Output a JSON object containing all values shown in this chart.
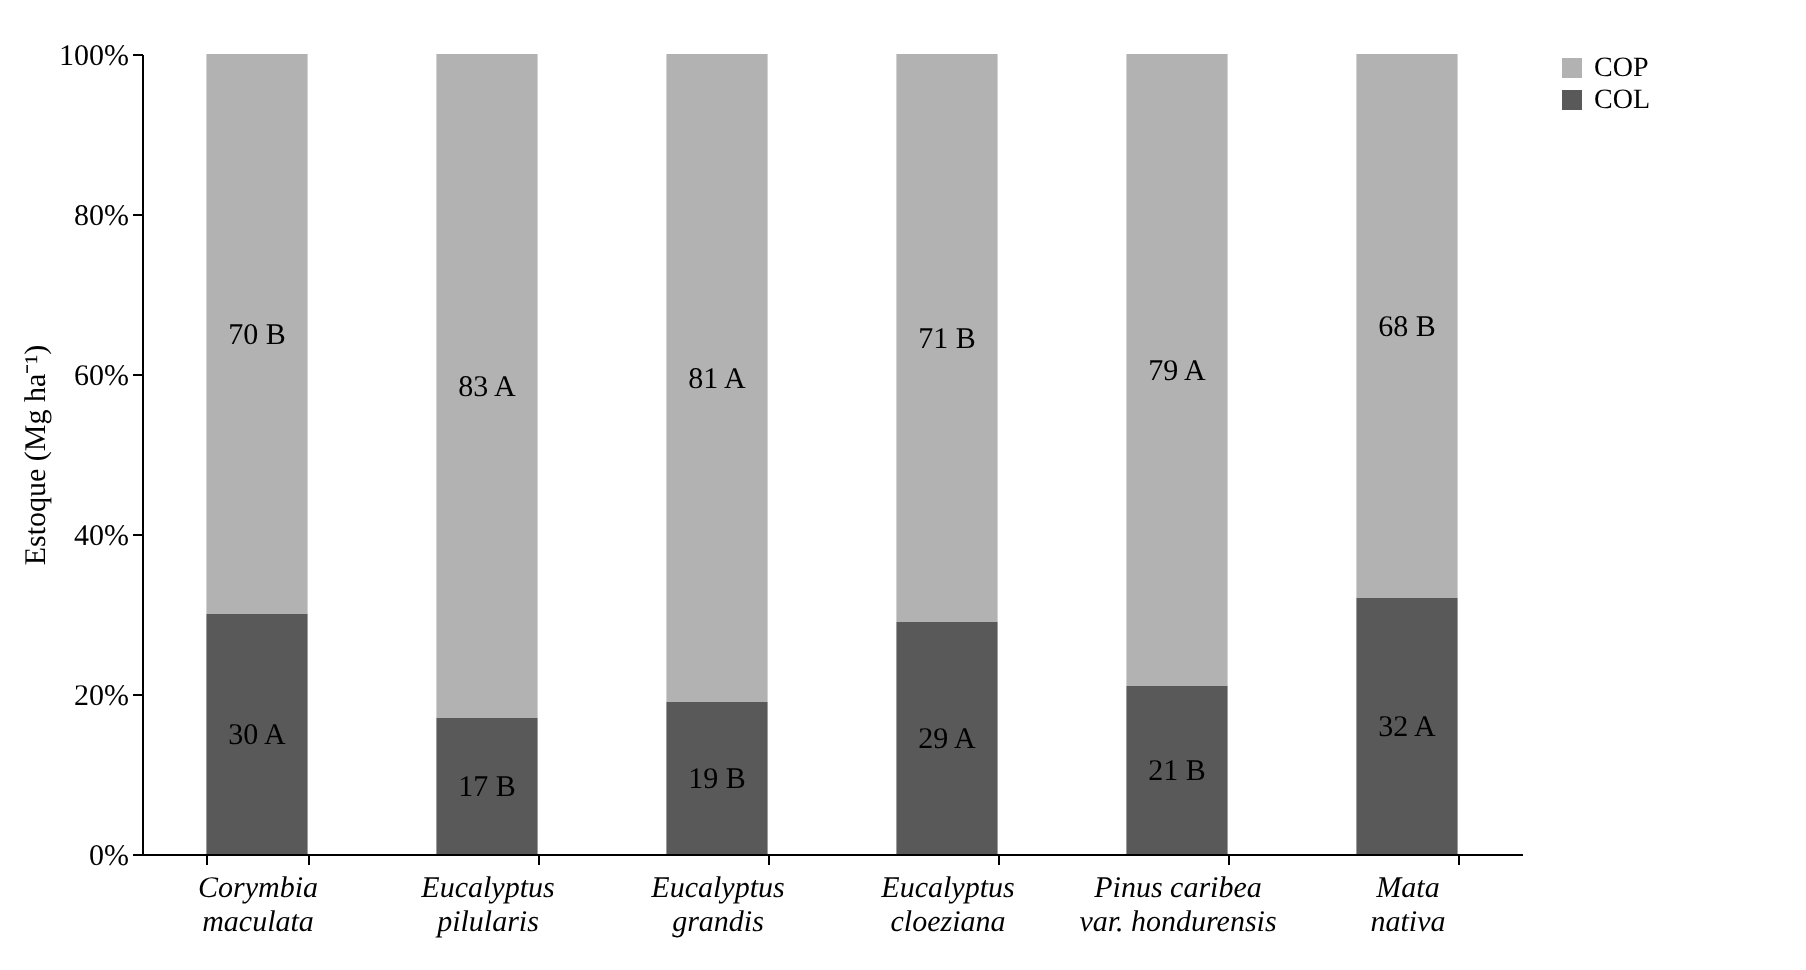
{
  "chart_data": {
    "type": "bar",
    "stacked": true,
    "ylabel": "Estoque (Mg ha⁻¹)",
    "categories": [
      "Corymbia maculata",
      "Eucalyptus pilularis",
      "Eucalyptus grandis",
      "Eucalyptus cloeziana",
      "Pinus caribea var. hondurensis",
      "Mata nativa"
    ],
    "series": [
      {
        "name": "COL",
        "color": "#595959",
        "values": [
          30,
          17,
          19,
          29,
          21,
          32
        ],
        "value_labels": [
          "30 A",
          "17 B",
          "19 B",
          "29 A",
          "21 B",
          "32 A"
        ]
      },
      {
        "name": "COP",
        "color": "#b2b2b2",
        "values": [
          70,
          83,
          81,
          71,
          79,
          68
        ],
        "value_labels": [
          "70 B",
          "83 A",
          "81 A",
          "71 B",
          "79 A",
          "68 B"
        ]
      }
    ],
    "ylim": [
      0,
      100
    ],
    "yticks": [
      {
        "value": 0,
        "label": "0%"
      },
      {
        "value": 20,
        "label": "20%"
      },
      {
        "value": 40,
        "label": "40%"
      },
      {
        "value": 60,
        "label": "60%"
      },
      {
        "value": 80,
        "label": "80%"
      },
      {
        "value": 100,
        "label": "100%"
      }
    ],
    "grid": false,
    "legend": "right"
  }
}
